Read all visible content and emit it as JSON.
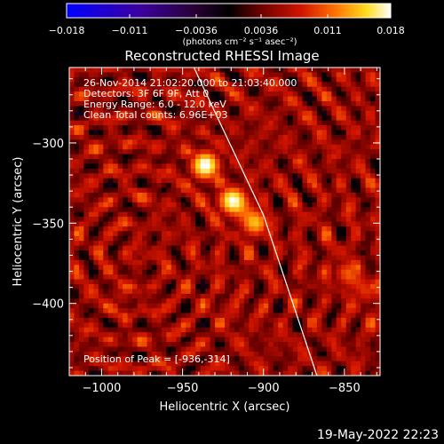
{
  "chart_data": {
    "type": "heatmap",
    "title": "Reconstructed RHESSI Image",
    "xlabel": "Heliocentric X (arcsec)",
    "ylabel": "Heliocentric Y (arcsec)",
    "xlim": [
      -1020,
      -828
    ],
    "ylim": [
      -445,
      -253
    ],
    "xticks": [
      -1000,
      -950,
      -900,
      -850
    ],
    "yticks": [
      -300,
      -350,
      -400
    ],
    "colorbar": {
      "min": -0.018,
      "max": 0.018,
      "ticks": [
        -0.018,
        -0.011,
        -0.0036,
        0.0036,
        0.011,
        0.018
      ],
      "tick_labels": [
        "−0.018",
        "−0.011",
        "−0.0036",
        "0.0036",
        "0.011",
        "0.018"
      ],
      "unit_label": "(photons cm⁻² s⁻¹ asec⁻²)"
    },
    "annotations": [
      "26-Nov-2014 21:02:20.000 to 21:03:40.000",
      "Detectors: 3F 6F 9F, Att 0",
      "Energy Range: 6.0 - 12.0 keV",
      "Clean    Total counts: 6.96E+03"
    ],
    "peak_label": "Position of Peak = [-936,-314]",
    "peak": [
      -936,
      -314
    ],
    "sources": [
      {
        "x": -936,
        "y": -314,
        "intensity": 1.0
      },
      {
        "x": -919,
        "y": -336,
        "intensity": 0.95
      },
      {
        "x": -905,
        "y": -350,
        "intensity": 0.75
      },
      {
        "x": -848,
        "y": -381,
        "intensity": 0.55
      },
      {
        "x": -836,
        "y": -393,
        "intensity": 0.45
      },
      {
        "x": -920,
        "y": -405,
        "intensity": 0.4
      },
      {
        "x": -988,
        "y": -395,
        "intensity": 0.35
      }
    ],
    "limb_line": [
      [
        -943,
        -253
      ],
      [
        -900,
        -345
      ],
      [
        -867,
        -445
      ]
    ],
    "grid": false
  },
  "footer": {
    "timestamp": "19-May-2022 22:23"
  }
}
